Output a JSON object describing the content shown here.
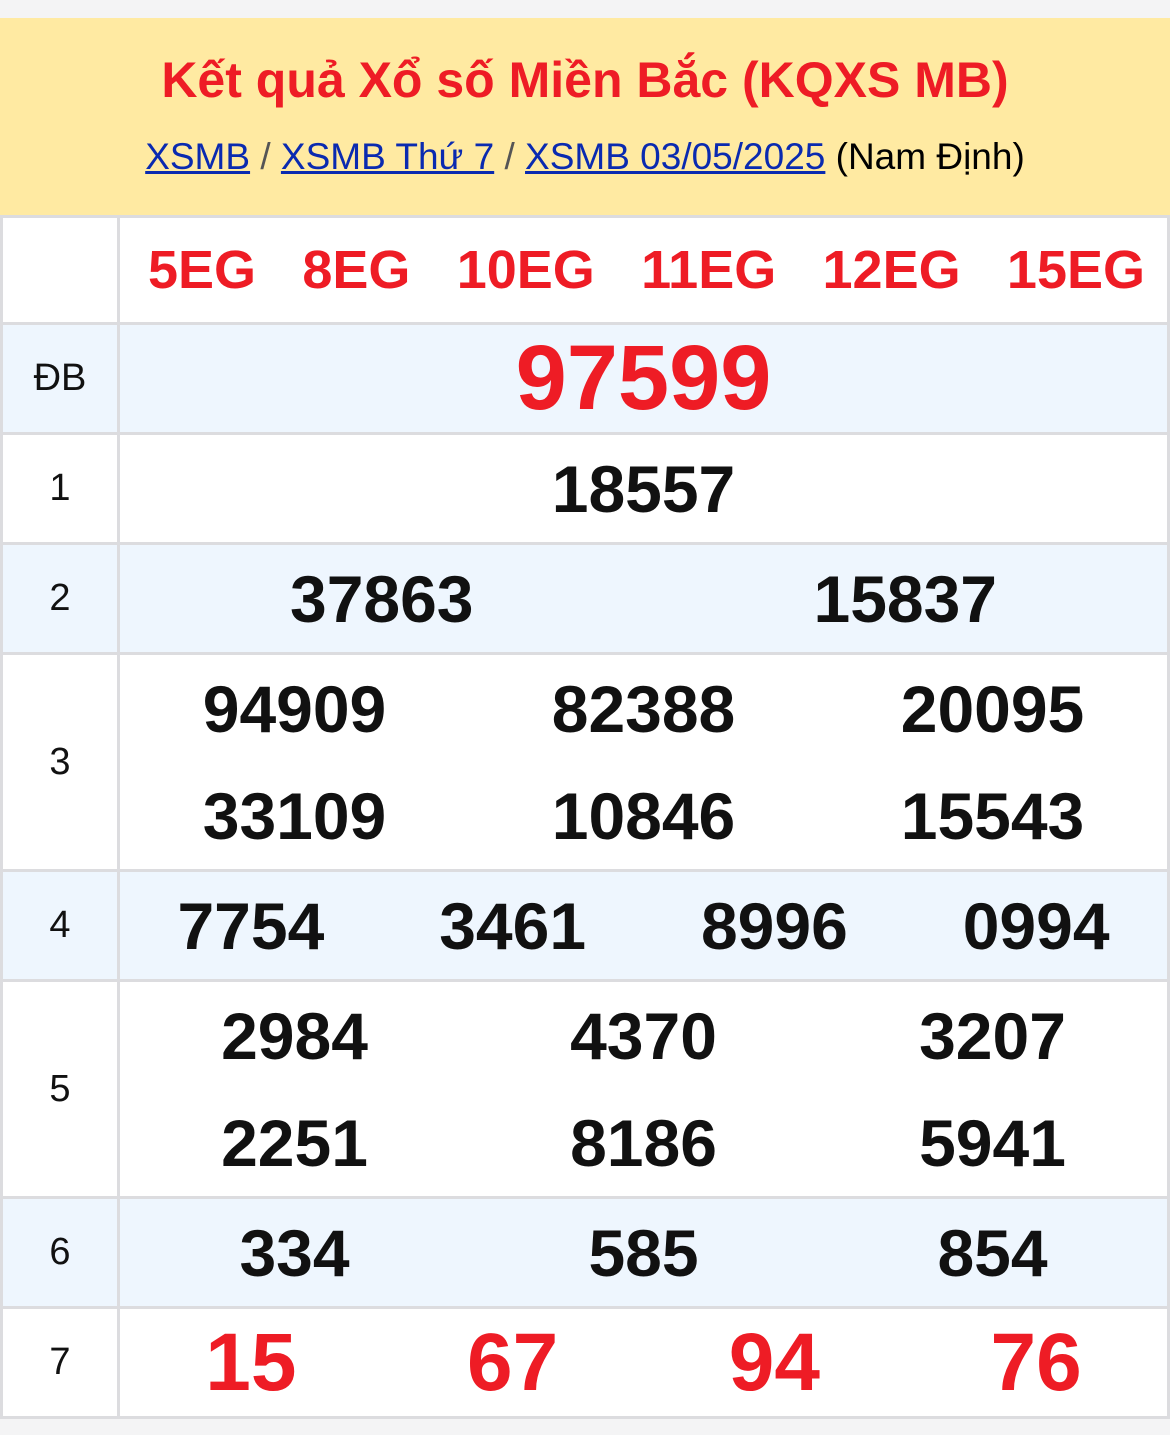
{
  "header": {
    "title": "Kết quả Xổ số Miền Bắc (KQXS MB)",
    "breadcrumb": [
      {
        "label": "XSMB"
      },
      {
        "label": "XSMB Thứ 7"
      },
      {
        "label": "XSMB 03/05/2025"
      }
    ],
    "separator": "/",
    "province": "(Nam Định)"
  },
  "codes": [
    "5EG",
    "8EG",
    "10EG",
    "11EG",
    "12EG",
    "15EG"
  ],
  "prizes": {
    "db": {
      "label": "ĐB",
      "numbers": [
        "97599"
      ]
    },
    "p1": {
      "label": "1",
      "numbers": [
        "18557"
      ]
    },
    "p2": {
      "label": "2",
      "numbers": [
        "37863",
        "15837"
      ]
    },
    "p3": {
      "label": "3",
      "numbers": [
        "94909",
        "82388",
        "20095",
        "33109",
        "10846",
        "15543"
      ]
    },
    "p4": {
      "label": "4",
      "numbers": [
        "7754",
        "3461",
        "8996",
        "0994"
      ]
    },
    "p5": {
      "label": "5",
      "numbers": [
        "2984",
        "4370",
        "3207",
        "2251",
        "8186",
        "5941"
      ]
    },
    "p6": {
      "label": "6",
      "numbers": [
        "334",
        "585",
        "854"
      ]
    },
    "p7": {
      "label": "7",
      "numbers": [
        "15",
        "67",
        "94",
        "76"
      ]
    }
  },
  "colors": {
    "accent_red": "#ee1c25",
    "header_bg": "#ffeaa2",
    "alt_row_bg": "#eef6fe",
    "link": "#0a2ab0"
  }
}
